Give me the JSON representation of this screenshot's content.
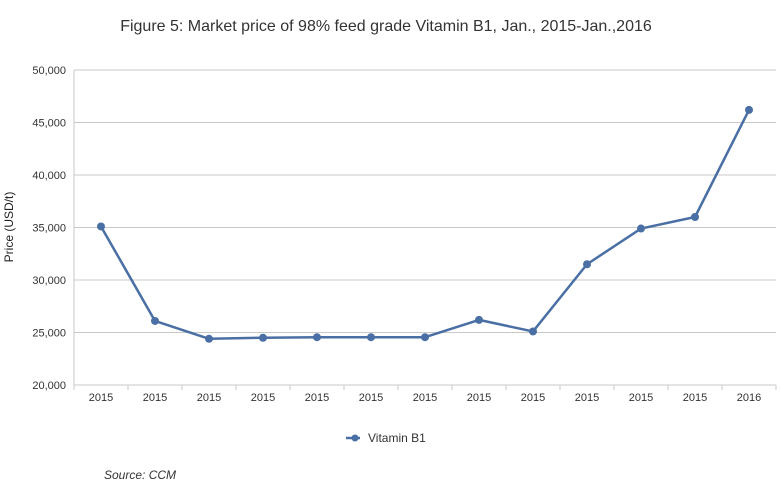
{
  "chart_data": {
    "type": "line",
    "title": "Figure 5: Market price of 98% feed grade Vitamin B1, Jan., 2015-Jan.,2016",
    "xlabel": "",
    "ylabel": "Price (USD/t)",
    "categories": [
      "2015",
      "2015",
      "2015",
      "2015",
      "2015",
      "2015",
      "2015",
      "2015",
      "2015",
      "2015",
      "2015",
      "2015",
      "2016"
    ],
    "series": [
      {
        "name": "Vitamin B1",
        "values": [
          35100,
          26100,
          24400,
          24500,
          24550,
          24550,
          24550,
          26200,
          25100,
          31500,
          34900,
          36000,
          46200
        ],
        "color": "#4a6fa5"
      }
    ],
    "ylim": [
      20000,
      50000
    ],
    "yticks": [
      20000,
      25000,
      30000,
      35000,
      40000,
      45000,
      50000
    ],
    "ytick_labels": [
      "20,000",
      "25,000",
      "30,000",
      "35,000",
      "40,000",
      "45,000",
      "50,000"
    ],
    "grid": true,
    "legend": "bottom-center"
  },
  "source": "Source: CCM"
}
